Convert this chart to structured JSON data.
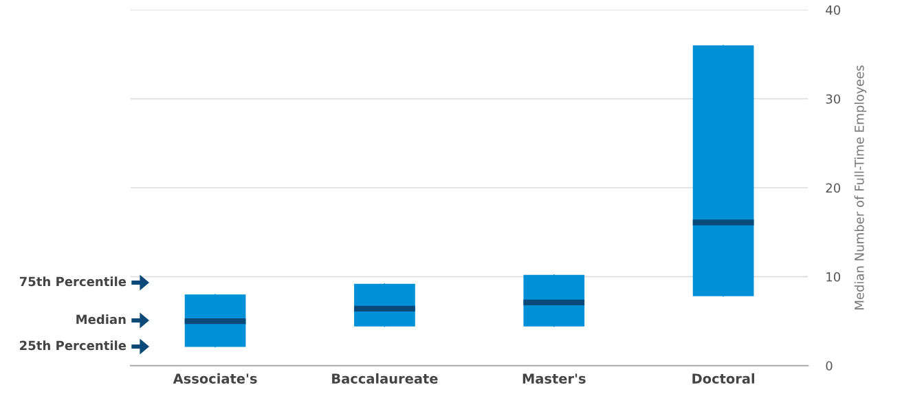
{
  "chart_data": {
    "type": "box",
    "categories": [
      "Associate's",
      "Baccalaureate",
      "Master's",
      "Doctoral"
    ],
    "boxes": [
      {
        "low": 2.1,
        "q1": 2.1,
        "median": 5.0,
        "q3": 8.0,
        "high": 8.0
      },
      {
        "low": 4.4,
        "q1": 4.4,
        "median": 6.4,
        "q3": 9.2,
        "high": 9.2
      },
      {
        "low": 4.4,
        "q1": 4.4,
        "median": 7.1,
        "q3": 10.2,
        "high": 10.2
      },
      {
        "low": 7.8,
        "q1": 7.8,
        "median": 16.1,
        "q3": 36.0,
        "high": 36.0
      }
    ],
    "color": "#0090d8",
    "ylabel": "Median Number of Full-Time Employees",
    "ylim": [
      0,
      40
    ],
    "yticks": [
      0,
      10,
      20,
      30,
      40
    ],
    "grid": "y",
    "annotations": [
      "75th Percentile",
      "Median",
      "25th Percentile"
    ]
  }
}
